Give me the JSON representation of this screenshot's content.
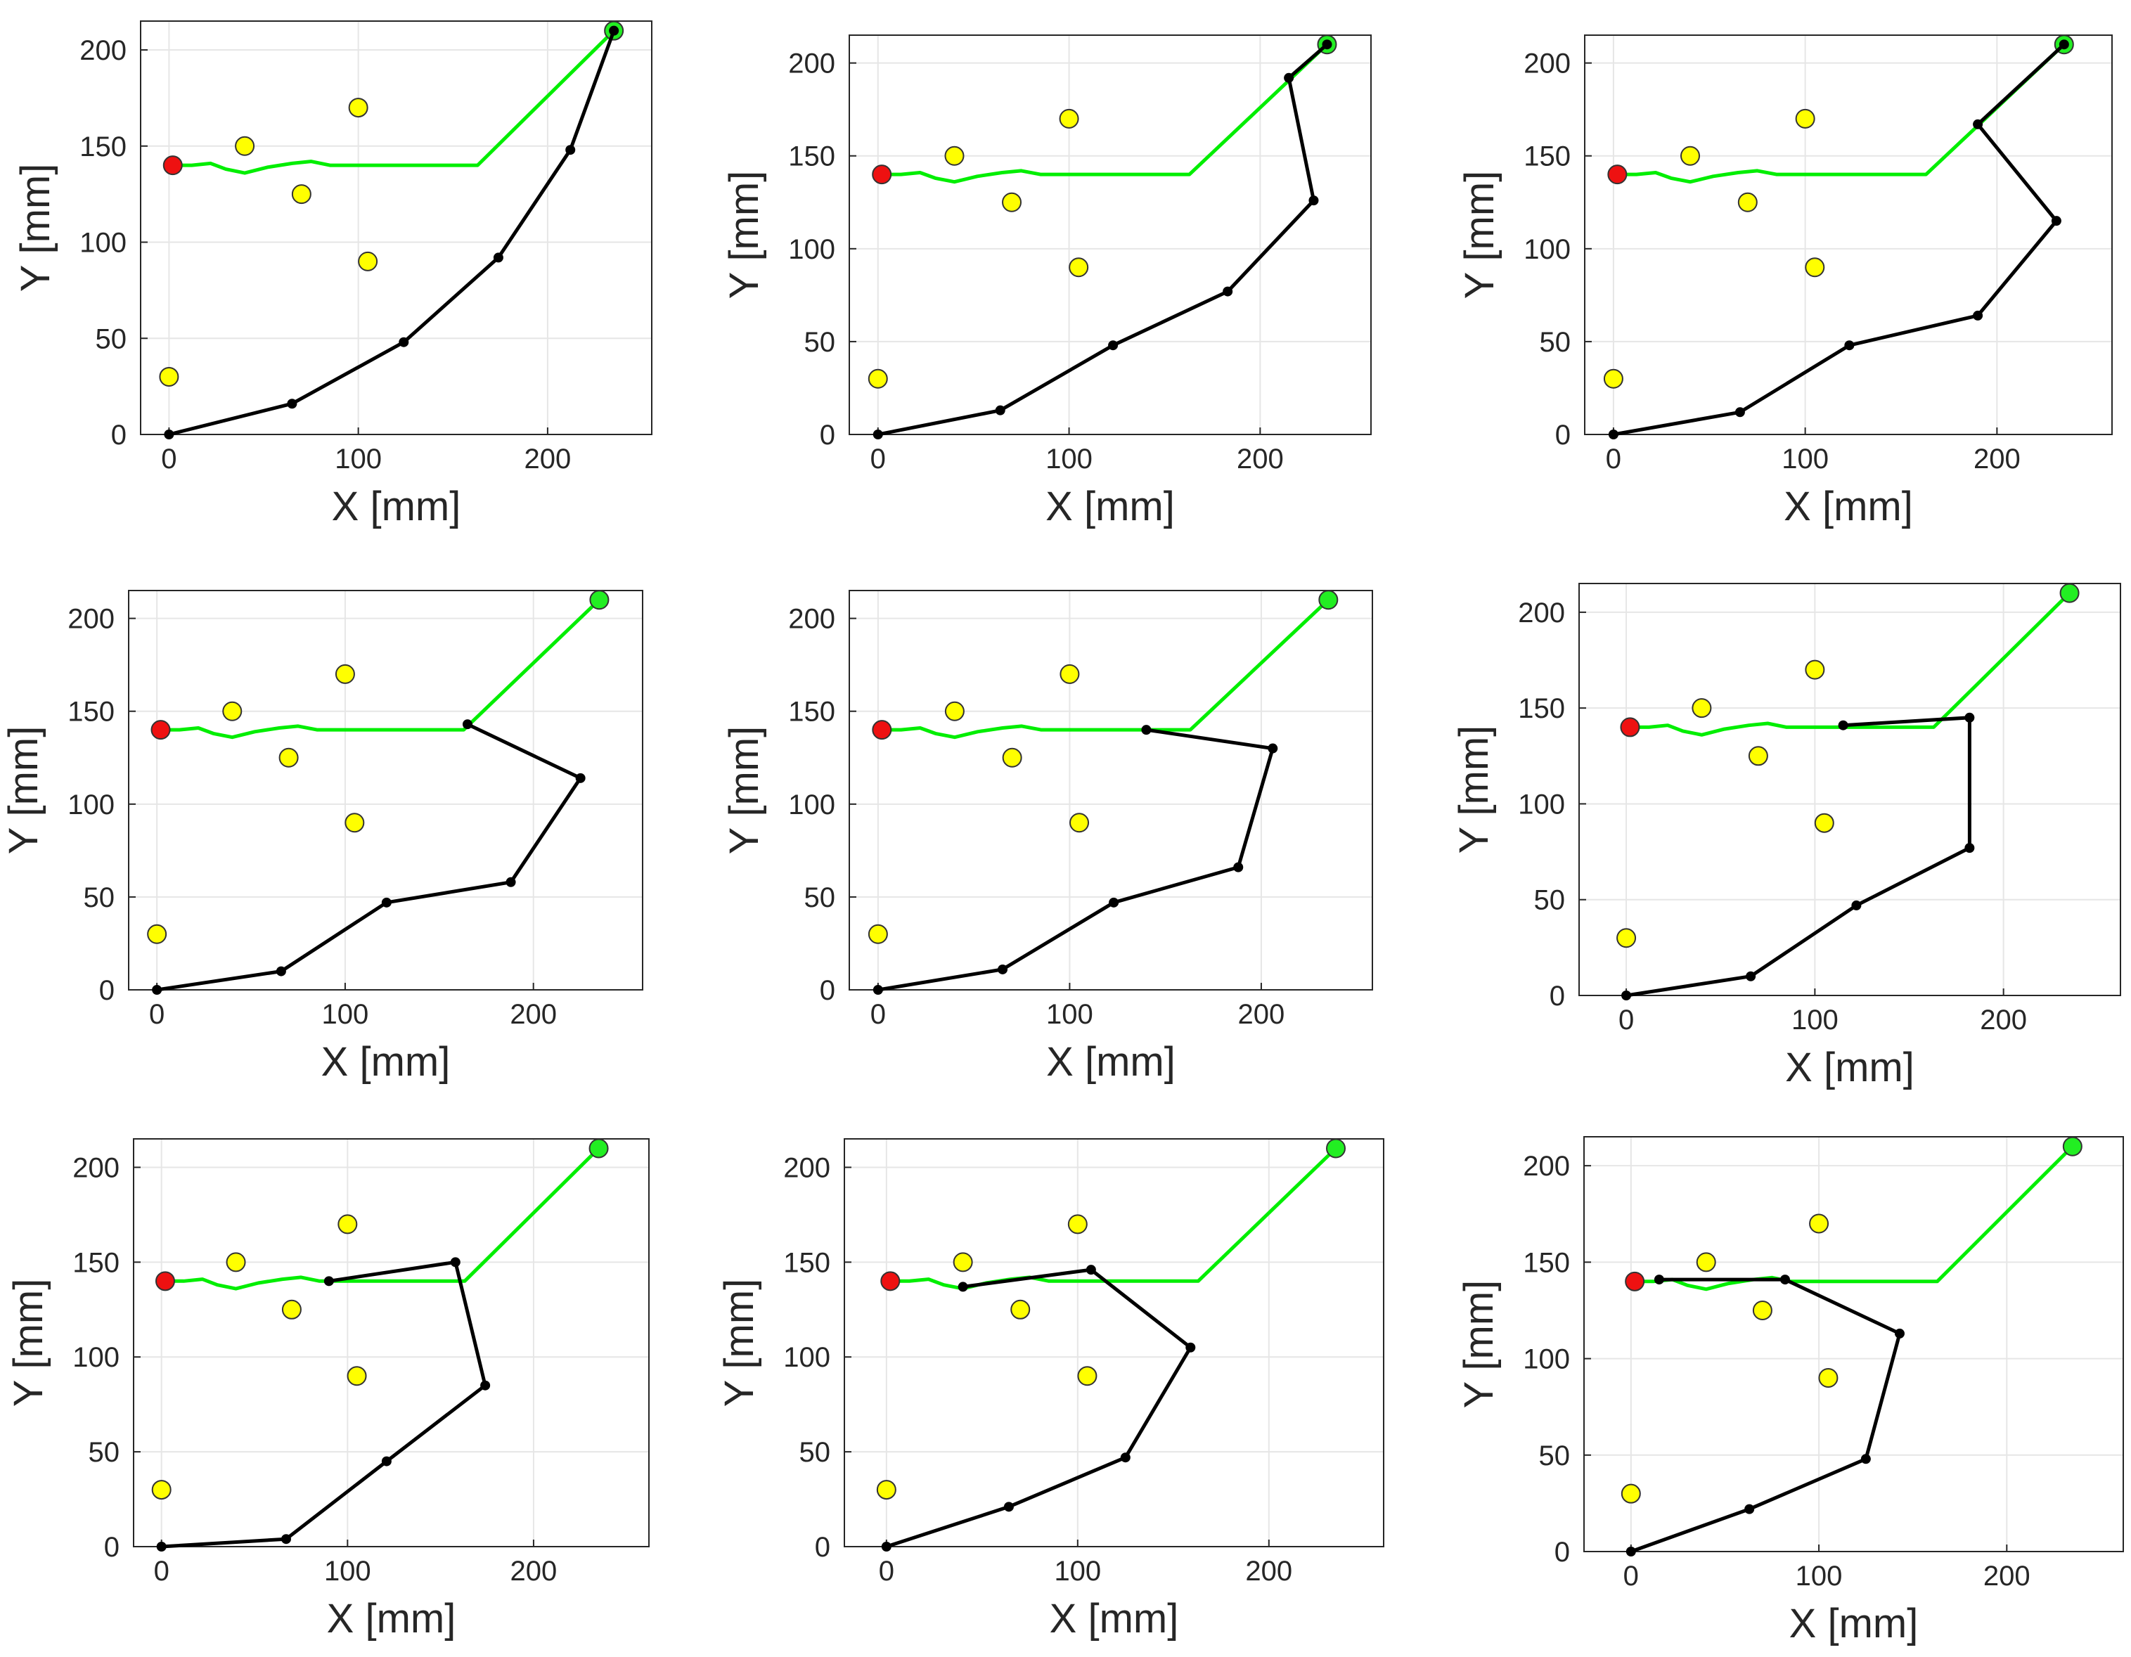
{
  "colors": {
    "path": "#00ee00",
    "arm": "#000000",
    "start": "#ee1111",
    "goal": "#22ee22",
    "obstacle": "#ffff00",
    "grid": "#e6e6e6",
    "axis": "#262626"
  },
  "chart_data": [
    {
      "type": "line",
      "title": "",
      "xlabel": "X [mm]",
      "ylabel": "Y [mm]",
      "xlim": [
        -15,
        255
      ],
      "ylim": [
        0,
        215
      ],
      "grid": true,
      "xticks": [
        0,
        100,
        200
      ],
      "yticks": [
        0,
        50,
        100,
        150,
        200
      ],
      "path": {
        "x": [
          0,
          12,
          22,
          30,
          40,
          52,
          65,
          75,
          85,
          100,
          130,
          163,
          235
        ],
        "y": [
          140,
          140,
          141,
          138,
          136,
          139,
          141,
          142,
          140,
          140,
          140,
          140,
          210
        ]
      },
      "start": {
        "x": 2,
        "y": 140
      },
      "goal": {
        "x": 235,
        "y": 210
      },
      "obstacles": {
        "x": [
          0,
          40,
          70,
          100,
          105
        ],
        "y": [
          30,
          150,
          125,
          170,
          90
        ]
      },
      "arm": {
        "x": [
          0,
          65,
          124,
          174,
          212,
          235
        ],
        "y": [
          0,
          16,
          48,
          92,
          148,
          210
        ]
      }
    },
    {
      "type": "line",
      "title": "",
      "xlabel": "X [mm]",
      "ylabel": "Y [mm]",
      "xlim": [
        -15,
        258
      ],
      "ylim": [
        0,
        215
      ],
      "grid": true,
      "xticks": [
        0,
        100,
        200
      ],
      "yticks": [
        0,
        50,
        100,
        150,
        200
      ],
      "path": {
        "x": [
          0,
          12,
          22,
          30,
          40,
          52,
          65,
          75,
          85,
          100,
          130,
          163,
          235
        ],
        "y": [
          140,
          140,
          141,
          138,
          136,
          139,
          141,
          142,
          140,
          140,
          140,
          140,
          210
        ]
      },
      "start": {
        "x": 2,
        "y": 140
      },
      "goal": {
        "x": 235,
        "y": 210
      },
      "obstacles": {
        "x": [
          0,
          40,
          70,
          100,
          105
        ],
        "y": [
          30,
          150,
          125,
          170,
          90
        ]
      },
      "arm": {
        "x": [
          0,
          64,
          123,
          183,
          228,
          215,
          235
        ],
        "y": [
          0,
          13,
          48,
          77,
          126,
          192,
          210
        ]
      }
    },
    {
      "type": "line",
      "title": "",
      "xlabel": "X [mm]",
      "ylabel": "Y [mm]",
      "xlim": [
        -15,
        260
      ],
      "ylim": [
        0,
        215
      ],
      "grid": true,
      "xticks": [
        0,
        100,
        200
      ],
      "yticks": [
        0,
        50,
        100,
        150,
        200
      ],
      "path": {
        "x": [
          0,
          12,
          22,
          30,
          40,
          52,
          65,
          75,
          85,
          100,
          130,
          163,
          235
        ],
        "y": [
          140,
          140,
          141,
          138,
          136,
          139,
          141,
          142,
          140,
          140,
          140,
          140,
          210
        ]
      },
      "start": {
        "x": 2,
        "y": 140
      },
      "goal": {
        "x": 235,
        "y": 210
      },
      "obstacles": {
        "x": [
          0,
          40,
          70,
          100,
          105
        ],
        "y": [
          30,
          150,
          125,
          170,
          90
        ]
      },
      "arm": {
        "x": [
          0,
          66,
          123,
          190,
          231,
          190,
          235
        ],
        "y": [
          0,
          12,
          48,
          64,
          115,
          167,
          210
        ]
      }
    },
    {
      "type": "line",
      "title": "",
      "xlabel": "X [mm]",
      "ylabel": "Y [mm]",
      "xlim": [
        -15,
        258
      ],
      "ylim": [
        0,
        215
      ],
      "grid": true,
      "xticks": [
        0,
        100,
        200
      ],
      "yticks": [
        0,
        50,
        100,
        150,
        200
      ],
      "path": {
        "x": [
          0,
          12,
          22,
          30,
          40,
          52,
          65,
          75,
          85,
          100,
          130,
          163,
          235
        ],
        "y": [
          140,
          140,
          141,
          138,
          136,
          139,
          141,
          142,
          140,
          140,
          140,
          140,
          210
        ]
      },
      "start": {
        "x": 2,
        "y": 140
      },
      "goal": {
        "x": 235,
        "y": 210
      },
      "obstacles": {
        "x": [
          0,
          40,
          70,
          100,
          105
        ],
        "y": [
          30,
          150,
          125,
          170,
          90
        ]
      },
      "arm": {
        "x": [
          0,
          66,
          122,
          188,
          225,
          165
        ],
        "y": [
          0,
          10,
          47,
          58,
          114,
          143
        ]
      }
    },
    {
      "type": "line",
      "title": "",
      "xlabel": "X [mm]",
      "ylabel": "Y [mm]",
      "xlim": [
        -15,
        258
      ],
      "ylim": [
        0,
        215
      ],
      "grid": true,
      "xticks": [
        0,
        100,
        200
      ],
      "yticks": [
        0,
        50,
        100,
        150,
        200
      ],
      "path": {
        "x": [
          0,
          12,
          22,
          30,
          40,
          52,
          65,
          75,
          85,
          100,
          130,
          163,
          235
        ],
        "y": [
          140,
          140,
          141,
          138,
          136,
          139,
          141,
          142,
          140,
          140,
          140,
          140,
          210
        ]
      },
      "start": {
        "x": 2,
        "y": 140
      },
      "goal": {
        "x": 235,
        "y": 210
      },
      "obstacles": {
        "x": [
          0,
          40,
          70,
          100,
          105
        ],
        "y": [
          30,
          150,
          125,
          170,
          90
        ]
      },
      "arm": {
        "x": [
          0,
          65,
          123,
          188,
          206,
          140
        ],
        "y": [
          0,
          11,
          47,
          66,
          130,
          140
        ]
      }
    },
    {
      "type": "line",
      "title": "",
      "xlabel": "X [mm]",
      "ylabel": "Y [mm]",
      "xlim": [
        -25,
        262
      ],
      "ylim": [
        0,
        215
      ],
      "grid": true,
      "xticks": [
        0,
        100,
        200
      ],
      "yticks": [
        0,
        50,
        100,
        150,
        200
      ],
      "path": {
        "x": [
          0,
          12,
          22,
          30,
          40,
          52,
          65,
          75,
          85,
          100,
          130,
          163,
          235
        ],
        "y": [
          140,
          140,
          141,
          138,
          136,
          139,
          141,
          142,
          140,
          140,
          140,
          140,
          210
        ]
      },
      "start": {
        "x": 2,
        "y": 140
      },
      "goal": {
        "x": 235,
        "y": 210
      },
      "obstacles": {
        "x": [
          0,
          40,
          70,
          100,
          105
        ],
        "y": [
          30,
          150,
          125,
          170,
          90
        ]
      },
      "arm": {
        "x": [
          0,
          66,
          122,
          182,
          182,
          115
        ],
        "y": [
          0,
          10,
          47,
          77,
          145,
          141
        ]
      }
    },
    {
      "type": "line",
      "title": "",
      "xlabel": "X [mm]",
      "ylabel": "Y [mm]",
      "xlim": [
        -15,
        262
      ],
      "ylim": [
        0,
        215
      ],
      "grid": true,
      "xticks": [
        0,
        100,
        200
      ],
      "yticks": [
        0,
        50,
        100,
        150,
        200
      ],
      "path": {
        "x": [
          0,
          12,
          22,
          30,
          40,
          52,
          65,
          75,
          85,
          100,
          130,
          163,
          235
        ],
        "y": [
          140,
          140,
          141,
          138,
          136,
          139,
          141,
          142,
          140,
          140,
          140,
          140,
          210
        ]
      },
      "start": {
        "x": 2,
        "y": 140
      },
      "goal": {
        "x": 235,
        "y": 210
      },
      "obstacles": {
        "x": [
          0,
          40,
          70,
          100,
          105
        ],
        "y": [
          30,
          150,
          125,
          170,
          90
        ]
      },
      "arm": {
        "x": [
          0,
          67,
          121,
          174,
          158,
          90
        ],
        "y": [
          0,
          4,
          45,
          85,
          150,
          140
        ]
      }
    },
    {
      "type": "line",
      "title": "",
      "xlabel": "X [mm]",
      "ylabel": "Y [mm]",
      "xlim": [
        -22,
        260
      ],
      "ylim": [
        0,
        215
      ],
      "grid": true,
      "xticks": [
        0,
        100,
        200
      ],
      "yticks": [
        0,
        50,
        100,
        150,
        200
      ],
      "path": {
        "x": [
          0,
          12,
          22,
          30,
          40,
          52,
          65,
          75,
          85,
          100,
          130,
          163,
          235
        ],
        "y": [
          140,
          140,
          141,
          138,
          136,
          139,
          141,
          142,
          140,
          140,
          140,
          140,
          210
        ]
      },
      "start": {
        "x": 2,
        "y": 140
      },
      "goal": {
        "x": 235,
        "y": 210
      },
      "obstacles": {
        "x": [
          0,
          40,
          70,
          100,
          105
        ],
        "y": [
          30,
          150,
          125,
          170,
          90
        ]
      },
      "arm": {
        "x": [
          0,
          64,
          125,
          159,
          107,
          40
        ],
        "y": [
          0,
          21,
          47,
          105,
          146,
          137
        ]
      }
    },
    {
      "type": "line",
      "title": "",
      "xlabel": "X [mm]",
      "ylabel": "Y [mm]",
      "xlim": [
        -25,
        262
      ],
      "ylim": [
        0,
        215
      ],
      "grid": true,
      "xticks": [
        0,
        100,
        200
      ],
      "yticks": [
        0,
        50,
        100,
        150,
        200
      ],
      "path": {
        "x": [
          0,
          12,
          22,
          30,
          40,
          52,
          65,
          75,
          85,
          100,
          130,
          163,
          235
        ],
        "y": [
          140,
          140,
          141,
          138,
          136,
          139,
          141,
          142,
          140,
          140,
          140,
          140,
          210
        ]
      },
      "start": {
        "x": 2,
        "y": 140
      },
      "goal": {
        "x": 235,
        "y": 210
      },
      "obstacles": {
        "x": [
          0,
          40,
          70,
          100,
          105
        ],
        "y": [
          30,
          150,
          125,
          170,
          90
        ]
      },
      "arm": {
        "x": [
          0,
          63,
          125,
          143,
          82,
          15
        ],
        "y": [
          0,
          22,
          48,
          113,
          141,
          141
        ]
      }
    }
  ]
}
